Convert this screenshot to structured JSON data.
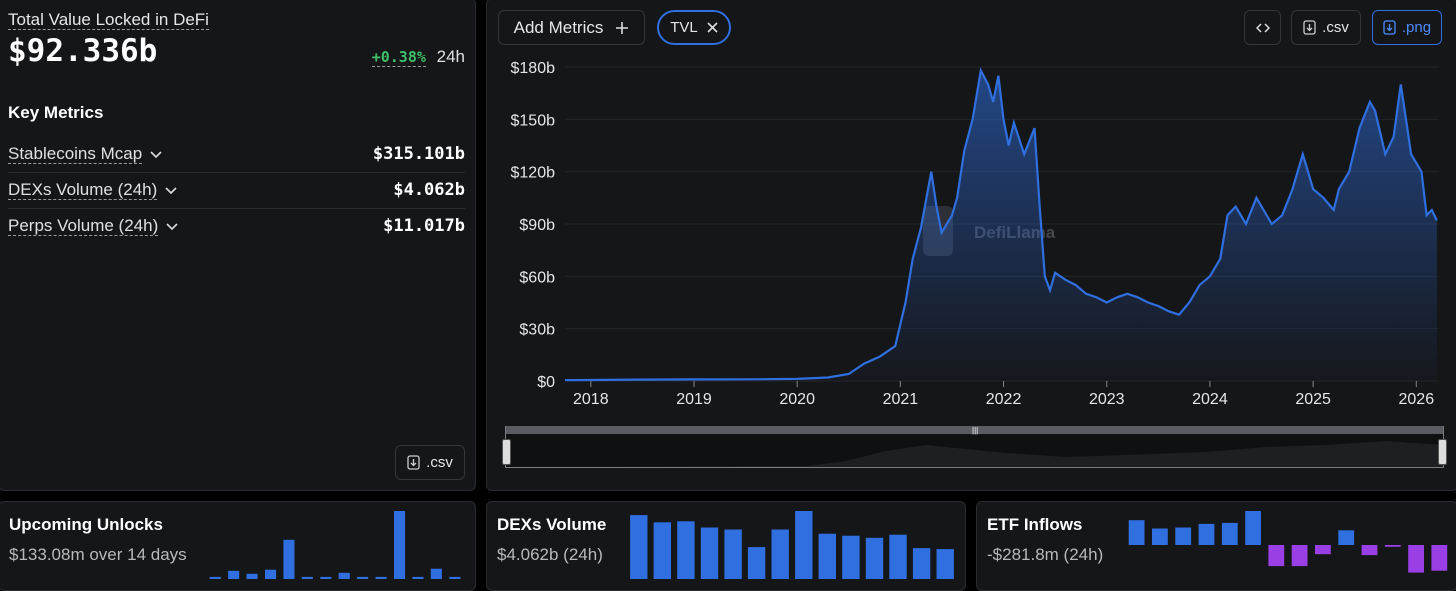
{
  "tvl_panel": {
    "title": "Total Value Locked in DeFi",
    "value": "$92.336b",
    "change": "+0.38%",
    "change_period": "24h",
    "key_metrics_heading": "Key Metrics",
    "metrics": [
      {
        "label": "Stablecoins Mcap",
        "value": "$315.101b"
      },
      {
        "label": "DEXs Volume (24h)",
        "value": "$4.062b"
      },
      {
        "label": "Perps Volume (24h)",
        "value": "$11.017b"
      }
    ],
    "csv_label": ".csv"
  },
  "toolbar": {
    "add_metrics_label": "Add Metrics",
    "tvl_chip_label": "TVL",
    "csv_label": ".csv",
    "png_label": ".png"
  },
  "watermark": "DefiLlama",
  "colors": {
    "accent": "#2f6fe0",
    "positive": "#3fbf6a",
    "etf_negative": "#9a3fe6"
  },
  "chart_data": {
    "type": "area",
    "x_ticks": [
      "2018",
      "2019",
      "2020",
      "2021",
      "2022",
      "2023",
      "2024",
      "2025",
      "2026"
    ],
    "y_ticks": [
      "$0",
      "$30b",
      "$60b",
      "$90b",
      "$120b",
      "$150b",
      "$180b"
    ],
    "ylim": [
      0,
      180
    ],
    "series": [
      {
        "x": [
          2017.75,
          2018.0,
          2018.5,
          2019.0,
          2019.5,
          2020.0,
          2020.3,
          2020.5,
          2020.65,
          2020.8,
          2020.95,
          2021.05,
          2021.12,
          2021.2,
          2021.3,
          2021.35,
          2021.4,
          2021.5,
          2021.55,
          2021.62,
          2021.7,
          2021.78,
          2021.85,
          2021.9,
          2021.95,
          2022.0,
          2022.05,
          2022.1,
          2022.2,
          2022.3,
          2022.35,
          2022.4,
          2022.45,
          2022.5,
          2022.6,
          2022.7,
          2022.8,
          2022.9,
          2023.0,
          2023.1,
          2023.2,
          2023.3,
          2023.4,
          2023.5,
          2023.6,
          2023.7,
          2023.8,
          2023.9,
          2024.0,
          2024.1,
          2024.17,
          2024.25,
          2024.35,
          2024.45,
          2024.6,
          2024.7,
          2024.8,
          2024.9,
          2024.95,
          2025.0,
          2025.1,
          2025.2,
          2025.25,
          2025.35,
          2025.45,
          2025.55,
          2025.6,
          2025.7,
          2025.78,
          2025.85,
          2025.9,
          2025.95,
          2026.0,
          2026.05,
          2026.1,
          2026.15,
          2026.2
        ],
        "y": [
          0.5,
          0.6,
          0.8,
          0.9,
          1.0,
          1.2,
          2,
          4,
          10,
          14,
          20,
          45,
          70,
          88,
          120,
          100,
          85,
          95,
          105,
          132,
          150,
          178,
          170,
          160,
          175,
          150,
          135,
          148,
          130,
          145,
          100,
          60,
          52,
          62,
          58,
          55,
          50,
          48,
          45,
          48,
          50,
          48,
          45,
          43,
          40,
          38,
          45,
          55,
          60,
          70,
          95,
          100,
          90,
          105,
          90,
          95,
          110,
          130,
          120,
          110,
          105,
          98,
          110,
          120,
          145,
          160,
          155,
          130,
          140,
          170,
          150,
          130,
          125,
          120,
          95,
          98,
          92
        ]
      }
    ]
  },
  "unlocks": {
    "title": "Upcoming Unlocks",
    "subtitle": "$133.08m over 14 days",
    "values": [
      2,
      8,
      5,
      9,
      38,
      2,
      2,
      6,
      2,
      2,
      66,
      2,
      10,
      2
    ]
  },
  "dex_volume": {
    "title": "DEXs Volume",
    "subtitle": "$4.062b (24h)",
    "values": [
      62,
      55,
      56,
      50,
      48,
      31,
      48,
      66,
      44,
      42,
      40,
      43,
      30,
      29
    ]
  },
  "etf": {
    "title": "ETF Inflows",
    "subtitle": "-$281.8m (24h)",
    "values": [
      270,
      180,
      190,
      230,
      240,
      370,
      -230,
      -230,
      -100,
      160,
      -110,
      -20,
      -300,
      -280
    ]
  }
}
